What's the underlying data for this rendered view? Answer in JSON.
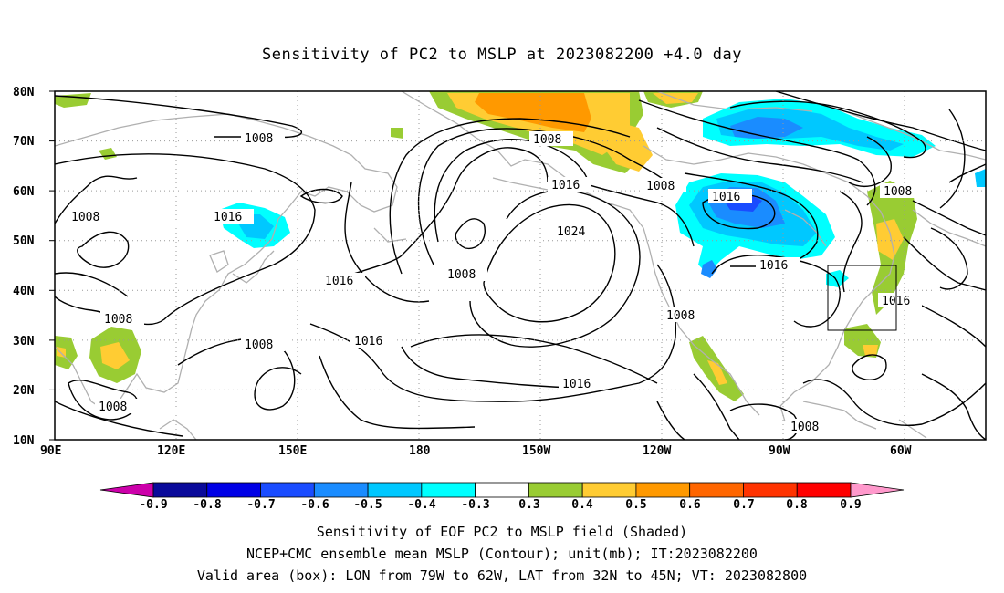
{
  "title": "Sensitivity of PC2 to MSLP at 2023082200 +4.0 day",
  "map": {
    "lat_ticks": [
      "80N",
      "70N",
      "60N",
      "50N",
      "40N",
      "30N",
      "20N",
      "10N"
    ],
    "lon_ticks": [
      "90E",
      "120E",
      "150E",
      "180",
      "150W",
      "120W",
      "90W",
      "60W"
    ],
    "contour_labels": [
      "1008",
      "1008",
      "1016",
      "1008",
      "1016",
      "1008",
      "1016",
      "1024",
      "1008",
      "1016",
      "1016",
      "1008",
      "1016",
      "1016",
      "1016",
      "1008",
      "1008",
      "1008",
      "1008",
      "1008"
    ],
    "valid_box": {
      "lon_from": "79W",
      "lon_to": "62W",
      "lat_from": "32N",
      "lat_to": "45N"
    }
  },
  "colorbar": {
    "labels": [
      "-0.9",
      "-0.8",
      "-0.7",
      "-0.6",
      "-0.5",
      "-0.4",
      "-0.3",
      "0.3",
      "0.4",
      "0.5",
      "0.6",
      "0.7",
      "0.8",
      "0.9"
    ],
    "colors": [
      "#0a0a9a",
      "#0000e6",
      "#1a4cff",
      "#1a8cff",
      "#00c8ff",
      "#00ffff",
      "#ffffff",
      "#99cc33",
      "#ffcc33",
      "#ff9900",
      "#ff6600",
      "#ff3300",
      "#ff0000"
    ],
    "low_end_color": "#cc00aa",
    "high_end_color": "#ff99cc"
  },
  "captions": [
    "Sensitivity of EOF PC2 to MSLP field (Shaded)",
    "NCEP+CMC ensemble mean MSLP (Contour); unit(mb); IT:2023082200",
    "Valid area (box): LON from 79W to 62W, LAT from 32N to 45N; VT: 2023082800"
  ]
}
